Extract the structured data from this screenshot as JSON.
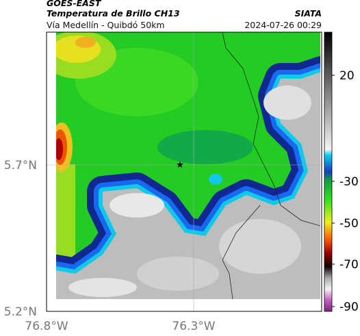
{
  "header": {
    "source": "GOES-EAST",
    "product": "Temperatura de Brillo CH13",
    "organization": "SIATA",
    "location": "Vía Medellín - Quibdó 50km",
    "timestamp": "2024-07-26 00:29"
  },
  "map": {
    "lat_ticks": [
      "5.7°N",
      "5.2°N"
    ],
    "lon_ticks": [
      "76.8°W",
      "76.3°W"
    ]
  },
  "colorbar": {
    "ticks": [
      20,
      -30,
      -50,
      -70,
      -90
    ]
  }
}
